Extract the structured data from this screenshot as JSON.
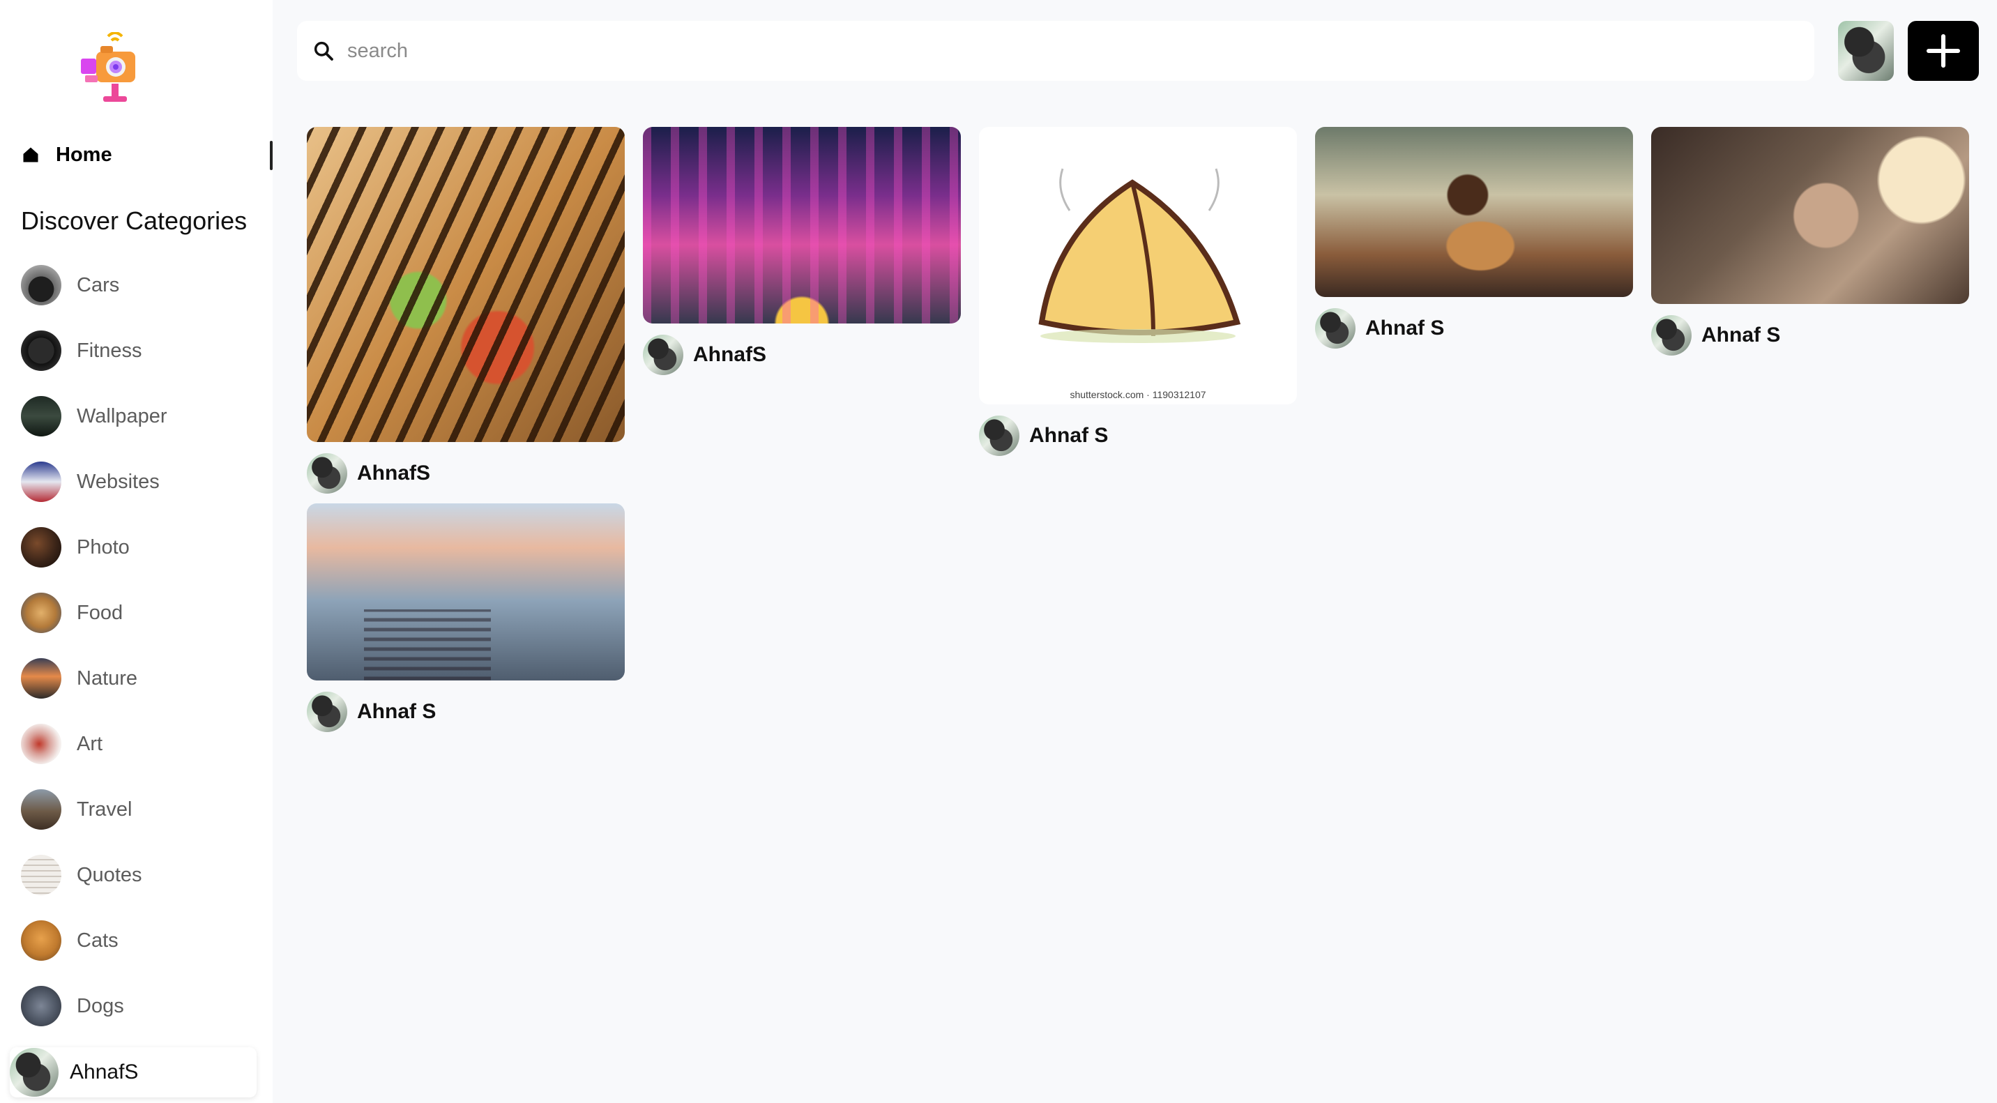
{
  "sidebar": {
    "home_label": "Home",
    "categories_title": "Discover Categories",
    "categories": [
      {
        "label": "Cars"
      },
      {
        "label": "Fitness"
      },
      {
        "label": "Wallpaper"
      },
      {
        "label": "Websites"
      },
      {
        "label": "Photo"
      },
      {
        "label": "Food"
      },
      {
        "label": "Nature"
      },
      {
        "label": "Art"
      },
      {
        "label": "Travel"
      },
      {
        "label": "Quotes"
      },
      {
        "label": "Cats"
      },
      {
        "label": "Dogs"
      }
    ],
    "user_name": "AhnafS"
  },
  "search": {
    "placeholder": "search",
    "value": ""
  },
  "pins": [
    {
      "author": "AhnafS",
      "subject": "grilled sandwich"
    },
    {
      "author": "AhnafS",
      "subject": "neon city street at night"
    },
    {
      "author": "Ahnaf S",
      "subject": "samosa illustration",
      "watermark": "shutterstock.com · 1190312107"
    },
    {
      "author": "Ahnaf S",
      "subject": "anime girl at desk"
    },
    {
      "author": "Ahnaf S",
      "subject": "anime boy studying"
    },
    {
      "author": "Ahnaf S",
      "subject": "anime alley stairway"
    }
  ],
  "icons": {
    "home": "home-icon",
    "search": "search-icon",
    "add": "plus-icon"
  },
  "colors": {
    "background": "#f8f9fb",
    "sidebar": "#ffffff",
    "add_button": "#000000"
  }
}
